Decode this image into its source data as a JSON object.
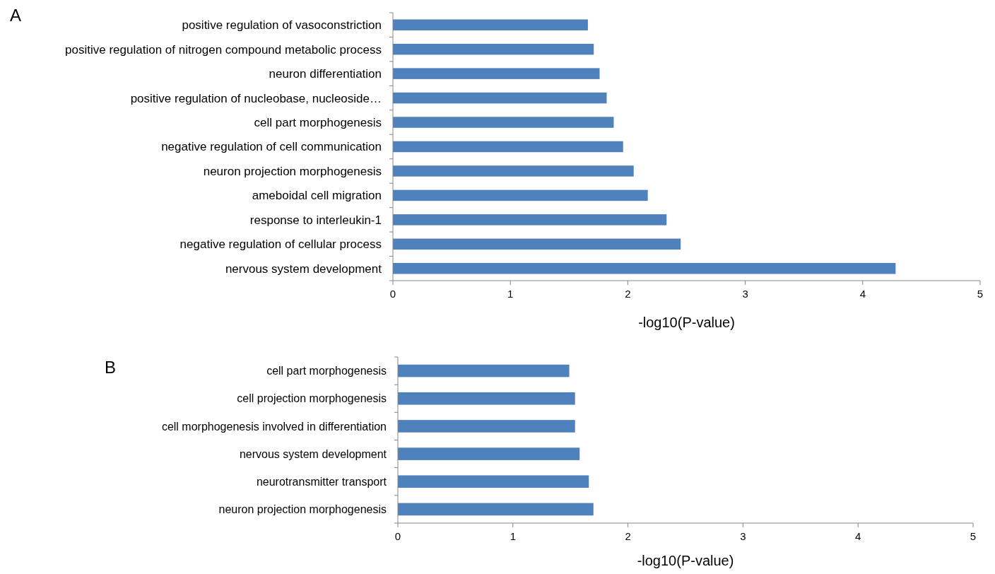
{
  "chart_data": [
    {
      "type": "bar",
      "orientation": "horizontal",
      "title": "A",
      "xlabel": "-log10(P-value)",
      "color": "#4f81bd",
      "categories": [
        "positive regulation of vasoconstriction",
        "positive regulation of nitrogen compound metabolic process",
        "neuron differentiation",
        "positive regulation of nucleobase, nucleoside…",
        "cell part morphogenesis",
        "negative regulation of cell communication",
        "neuron projection morphogenesis",
        "ameboidal cell migration",
        "response to interleukin-1",
        "negative regulation of cellular process",
        "nervous system development"
      ],
      "values": [
        1.66,
        1.71,
        1.76,
        1.82,
        1.88,
        1.96,
        2.05,
        2.17,
        2.33,
        2.45,
        4.28
      ],
      "xlim": [
        0,
        5
      ],
      "xticks": [
        0,
        1,
        2,
        3,
        4,
        5
      ]
    },
    {
      "type": "bar",
      "orientation": "horizontal",
      "title": "B",
      "xlabel": "-log10(P-value)",
      "color": "#4f81bd",
      "categories": [
        "cell part morphogenesis",
        "cell projection morphogenesis",
        "cell morphogenesis involved in differentiation",
        "nervous system development",
        "neurotransmitter transport",
        "neuron projection morphogenesis"
      ],
      "values": [
        1.49,
        1.54,
        1.54,
        1.58,
        1.66,
        1.7
      ],
      "xlim": [
        0,
        5
      ],
      "xticks": [
        0,
        1,
        2,
        3,
        4,
        5
      ]
    }
  ]
}
